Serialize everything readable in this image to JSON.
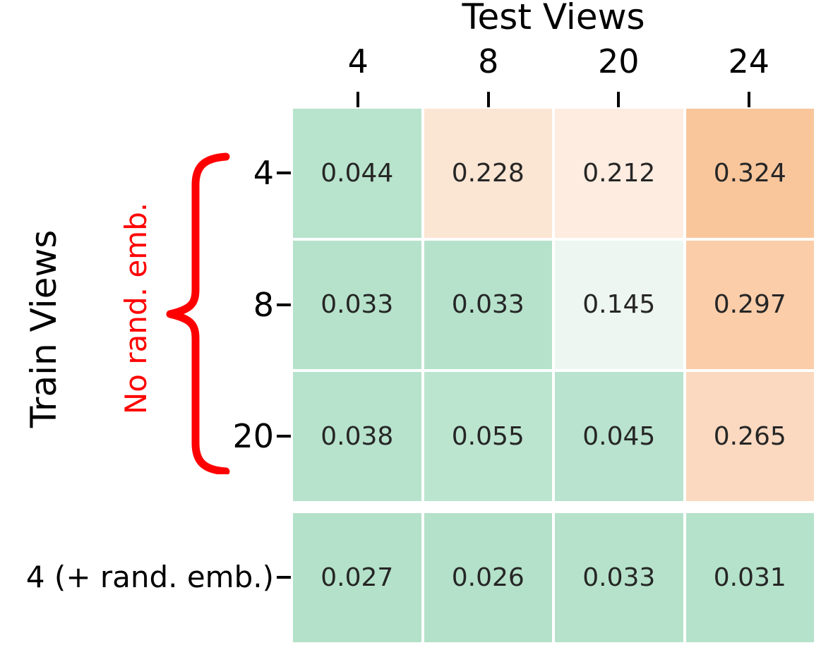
{
  "figure": {
    "title": "Test Views",
    "row_axis_label": "Train Views",
    "brace_label": "No rand. emb."
  },
  "chart_data": {
    "type": "heatmap",
    "title": "Test Views",
    "col_axis_label": "Test Views",
    "row_axis_label": "Train Views",
    "col_labels": [
      "4",
      "8",
      "20",
      "24"
    ],
    "row_labels": [
      "4",
      "8",
      "20"
    ],
    "bottom_row_label": "4 (+ rand. emb.)",
    "main_grid": {
      "values": [
        [
          0.044,
          0.228,
          0.212,
          0.324
        ],
        [
          0.033,
          0.033,
          0.145,
          0.297
        ],
        [
          0.038,
          0.055,
          0.045,
          0.265
        ]
      ],
      "labels": [
        [
          "0.044",
          "0.228",
          "0.212",
          "0.324"
        ],
        [
          "0.033",
          "0.033",
          "0.145",
          "0.297"
        ],
        [
          "0.038",
          "0.055",
          "0.045",
          "0.265"
        ]
      ],
      "colors": [
        [
          "#b8e3cd",
          "#fbe5d3",
          "#fdecdf",
          "#f9c69c"
        ],
        [
          "#b6e2cb",
          "#b6e2cb",
          "#edf6f1",
          "#fbcda9"
        ],
        [
          "#b7e3cc",
          "#bce5d0",
          "#b9e3ce",
          "#fbd9c0"
        ]
      ]
    },
    "bottom_grid": {
      "values": [
        [
          0.027,
          0.026,
          0.033,
          0.031
        ]
      ],
      "labels": [
        [
          "0.027",
          "0.026",
          "0.033",
          "0.031"
        ]
      ],
      "colors": [
        [
          "#b4e1c9",
          "#b4e1c9",
          "#b6e2cb",
          "#b5e2ca"
        ]
      ]
    },
    "annotation": {
      "text": "No rand. emb.",
      "color": "#ff0000",
      "applies_to_rows": [
        "4",
        "8",
        "20"
      ]
    },
    "colormap": {
      "type": "diverging",
      "low_color": "#b3e1c9",
      "mid_color": "#ffffff",
      "high_color": "#f9c69c"
    },
    "value_text_color": "#262626",
    "tick_color": "#000000"
  }
}
